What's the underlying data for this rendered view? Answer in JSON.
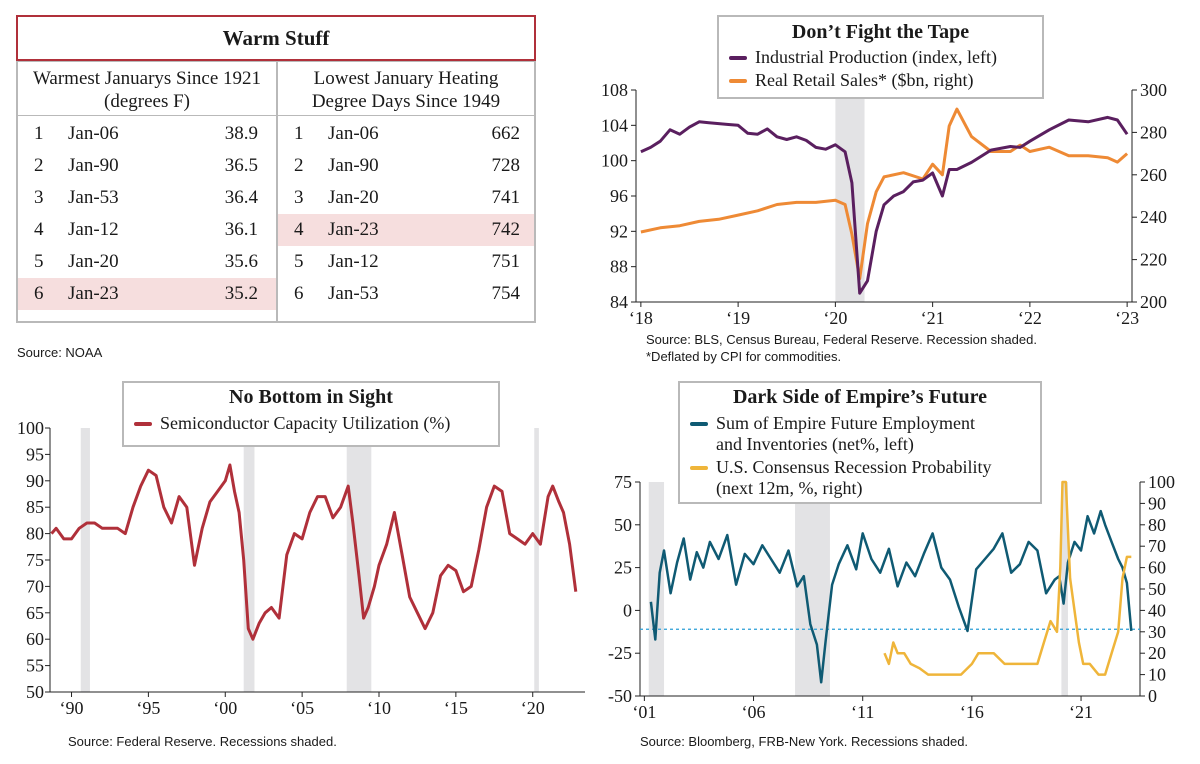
{
  "warm_stuff": {
    "title": "Warm Stuff",
    "left_header": "Warmest Januarys Since 1921 (degrees F)",
    "left_header_l1": "Warmest Januarys Since 1921",
    "left_header_l2": "(degrees F)",
    "right_header_l1": "Lowest January Heating",
    "right_header_l2": "Degree Days Since 1949",
    "left_rows": [
      {
        "rank": "1",
        "month": "Jan-06",
        "value": "38.9",
        "highlight": false
      },
      {
        "rank": "2",
        "month": "Jan-90",
        "value": "36.5",
        "highlight": false
      },
      {
        "rank": "3",
        "month": "Jan-53",
        "value": "36.4",
        "highlight": false
      },
      {
        "rank": "4",
        "month": "Jan-12",
        "value": "36.1",
        "highlight": false
      },
      {
        "rank": "5",
        "month": "Jan-20",
        "value": "35.6",
        "highlight": false
      },
      {
        "rank": "6",
        "month": "Jan-23",
        "value": "35.2",
        "highlight": true
      }
    ],
    "right_rows": [
      {
        "rank": "1",
        "month": "Jan-06",
        "value": "662",
        "highlight": false
      },
      {
        "rank": "2",
        "month": "Jan-90",
        "value": "728",
        "highlight": false
      },
      {
        "rank": "3",
        "month": "Jan-20",
        "value": "741",
        "highlight": false
      },
      {
        "rank": "4",
        "month": "Jan-23",
        "value": "742",
        "highlight": true
      },
      {
        "rank": "5",
        "month": "Jan-12",
        "value": "751",
        "highlight": false
      },
      {
        "rank": "6",
        "month": "Jan-53",
        "value": "754",
        "highlight": false
      }
    ],
    "source": "Source: NOAA"
  },
  "colors": {
    "purple": "#5a1f5f",
    "orange": "#ee8a35",
    "crimson": "#b0303a",
    "teal": "#0f5a73",
    "gold": "#efb53a",
    "recession": "#e3e3e5",
    "dashed": "#2a9fd6"
  },
  "chart_data": [
    {
      "id": "tape",
      "type": "line",
      "title": "Don’t Fight the Tape",
      "legend": [
        "Industrial Production (index, left)",
        "Real Retail Sales* ($bn, right)"
      ],
      "x_ticks": [
        "‘18",
        "‘19",
        "‘20",
        "‘21",
        "‘22",
        "‘23"
      ],
      "x_tick_values": [
        2018,
        2019,
        2020,
        2021,
        2022,
        2023
      ],
      "xlim": [
        2017.95,
        2023.05
      ],
      "y_left_ticks": [
        "108",
        "104",
        "100",
        "96",
        "92",
        "88",
        "84"
      ],
      "ylim_left": [
        84,
        108
      ],
      "y_right_ticks": [
        "300",
        "280",
        "260",
        "240",
        "220",
        "200"
      ],
      "ylim_right": [
        200,
        300
      ],
      "recessions": [
        [
          2020.0,
          2020.3
        ]
      ],
      "series": [
        {
          "name": "Industrial Production (index, left)",
          "axis": "left",
          "x": [
            2018.0,
            2018.1,
            2018.2,
            2018.3,
            2018.4,
            2018.5,
            2018.6,
            2018.7,
            2018.8,
            2018.9,
            2019.0,
            2019.1,
            2019.2,
            2019.3,
            2019.4,
            2019.5,
            2019.6,
            2019.7,
            2019.8,
            2019.9,
            2020.0,
            2020.1,
            2020.17,
            2020.25,
            2020.33,
            2020.42,
            2020.5,
            2020.6,
            2020.7,
            2020.8,
            2020.9,
            2021.0,
            2021.1,
            2021.17,
            2021.25,
            2021.4,
            2021.6,
            2021.8,
            2021.9,
            2022.0,
            2022.2,
            2022.4,
            2022.6,
            2022.8,
            2022.9,
            2023.0
          ],
          "values": [
            101.0,
            101.5,
            102.2,
            103.5,
            103.0,
            103.8,
            104.4,
            104.3,
            104.2,
            104.1,
            104.0,
            103.1,
            103.0,
            103.6,
            102.7,
            102.4,
            102.7,
            102.3,
            101.5,
            101.3,
            101.8,
            101.0,
            97.5,
            85.0,
            86.4,
            92.0,
            95.0,
            96.0,
            96.5,
            97.6,
            97.8,
            98.6,
            96.0,
            99.0,
            99.0,
            99.8,
            101.2,
            101.6,
            101.5,
            102.2,
            103.5,
            104.6,
            104.4,
            104.9,
            104.6,
            103.0
          ]
        },
        {
          "name": "Real Retail Sales* ($bn, right)",
          "axis": "right",
          "x": [
            2018.0,
            2018.2,
            2018.4,
            2018.6,
            2018.8,
            2019.0,
            2019.2,
            2019.4,
            2019.6,
            2019.8,
            2020.0,
            2020.1,
            2020.17,
            2020.25,
            2020.33,
            2020.42,
            2020.5,
            2020.7,
            2020.9,
            2021.0,
            2021.1,
            2021.17,
            2021.25,
            2021.4,
            2021.6,
            2021.8,
            2021.9,
            2022.0,
            2022.2,
            2022.4,
            2022.6,
            2022.8,
            2022.9,
            2023.0
          ],
          "values": [
            233,
            235,
            236,
            238,
            239,
            241,
            243,
            246,
            247,
            247,
            248,
            246,
            232,
            211,
            237,
            252,
            259,
            261,
            258,
            265,
            260,
            283,
            291,
            278,
            271,
            271,
            274,
            271,
            273,
            269,
            269,
            268,
            266,
            270
          ]
        }
      ]
    },
    {
      "id": "semis",
      "type": "line",
      "title": "No Bottom in Sight",
      "legend": [
        "Semiconductor Capacity Utilization (%)"
      ],
      "x_ticks": [
        "‘90",
        "‘95",
        "‘00",
        "‘05",
        "‘10",
        "‘15",
        "‘20"
      ],
      "x_tick_values": [
        1990,
        1995,
        2000,
        2005,
        2010,
        2015,
        2020
      ],
      "xlim": [
        1988.6,
        2023.4
      ],
      "y_left_ticks": [
        "100",
        "95",
        "90",
        "85",
        "80",
        "75",
        "70",
        "65",
        "60",
        "55",
        "50"
      ],
      "ylim_left": [
        50,
        100
      ],
      "recessions": [
        [
          1990.6,
          1991.2
        ],
        [
          2001.2,
          2001.9
        ],
        [
          2007.9,
          2009.5
        ],
        [
          2020.1,
          2020.4
        ]
      ],
      "series": [
        {
          "name": "Semiconductor Capacity Utilization (%)",
          "axis": "left",
          "x": [
            1988.7,
            1989.0,
            1989.5,
            1990.0,
            1990.5,
            1991.0,
            1991.5,
            1992.0,
            1992.5,
            1993.0,
            1993.5,
            1994.0,
            1994.5,
            1995.0,
            1995.5,
            1996.0,
            1996.5,
            1997.0,
            1997.5,
            1998.0,
            1998.5,
            1999.0,
            1999.5,
            2000.0,
            2000.3,
            2000.6,
            2000.9,
            2001.2,
            2001.5,
            2001.8,
            2002.2,
            2002.6,
            2003.0,
            2003.5,
            2004.0,
            2004.5,
            2005.0,
            2005.5,
            2006.0,
            2006.5,
            2007.0,
            2007.5,
            2008.0,
            2008.3,
            2008.7,
            2009.0,
            2009.3,
            2009.7,
            2010.0,
            2010.5,
            2011.0,
            2011.5,
            2012.0,
            2012.5,
            2013.0,
            2013.5,
            2014.0,
            2014.5,
            2015.0,
            2015.5,
            2016.0,
            2016.5,
            2017.0,
            2017.5,
            2018.0,
            2018.5,
            2019.0,
            2019.5,
            2020.0,
            2020.5,
            2021.0,
            2021.3,
            2021.7,
            2022.0,
            2022.4,
            2022.8
          ],
          "values": [
            80,
            81,
            79,
            79,
            81,
            82,
            82,
            81,
            81,
            81,
            80,
            85,
            89,
            92,
            91,
            85,
            82,
            87,
            85,
            74,
            81,
            86,
            88,
            90,
            93,
            88,
            84,
            75,
            62,
            60,
            63,
            65,
            66,
            64,
            76,
            80,
            79,
            84,
            87,
            87,
            83,
            85,
            89,
            82,
            72,
            64,
            66,
            70,
            74,
            78,
            84,
            76,
            68,
            65,
            62,
            65,
            72,
            74,
            73,
            69,
            70,
            77,
            85,
            89,
            88,
            80,
            79,
            78,
            80,
            78,
            87,
            89,
            86,
            84,
            78,
            69
          ]
        }
      ]
    },
    {
      "id": "empire",
      "type": "line",
      "title": "Dark Side of Empire’s Future",
      "legend": [
        "Sum of Empire Future Employment and Inventories (net%, left)",
        "U.S. Consensus Recession Probability (next 12m, %, right)"
      ],
      "x_ticks": [
        "‘01",
        "‘06",
        "‘11",
        "‘16",
        "‘21"
      ],
      "x_tick_values": [
        2001,
        2006,
        2011,
        2016,
        2021
      ],
      "xlim": [
        2000.8,
        2023.7
      ],
      "y_left_ticks": [
        "75",
        "50",
        "25",
        "0",
        "-25",
        "-50"
      ],
      "ylim_left": [
        -50,
        75
      ],
      "y_right_ticks": [
        "100",
        "90",
        "80",
        "70",
        "60",
        "50",
        "40",
        "30",
        "20",
        "10",
        "0"
      ],
      "ylim_right": [
        0,
        100
      ],
      "reference_line_left": -11,
      "recessions": [
        [
          2001.2,
          2001.9
        ],
        [
          2007.9,
          2009.5
        ],
        [
          2020.1,
          2020.4
        ]
      ],
      "series": [
        {
          "name": "Sum of Empire Future Employment and Inventories (net%, left)",
          "axis": "left",
          "x": [
            2001.3,
            2001.5,
            2001.7,
            2001.9,
            2002.2,
            2002.5,
            2002.8,
            2003.1,
            2003.4,
            2003.7,
            2004.0,
            2004.4,
            2004.8,
            2005.2,
            2005.6,
            2006.0,
            2006.4,
            2006.8,
            2007.2,
            2007.6,
            2008.0,
            2008.3,
            2008.6,
            2008.9,
            2009.1,
            2009.3,
            2009.6,
            2009.9,
            2010.3,
            2010.7,
            2011.0,
            2011.4,
            2011.8,
            2012.2,
            2012.6,
            2013.0,
            2013.4,
            2013.8,
            2014.2,
            2014.6,
            2015.0,
            2015.4,
            2015.8,
            2016.2,
            2016.6,
            2017.0,
            2017.4,
            2017.8,
            2018.2,
            2018.6,
            2019.0,
            2019.4,
            2019.8,
            2020.0,
            2020.2,
            2020.4,
            2020.7,
            2021.0,
            2021.3,
            2021.6,
            2021.9,
            2022.1,
            2022.4,
            2022.7,
            2022.9,
            2023.1,
            2023.3
          ],
          "values": [
            5,
            -17,
            22,
            35,
            10,
            28,
            42,
            18,
            34,
            25,
            40,
            30,
            44,
            15,
            33,
            27,
            38,
            30,
            22,
            35,
            14,
            20,
            -8,
            -20,
            -42,
            -18,
            15,
            27,
            38,
            24,
            45,
            30,
            22,
            36,
            14,
            28,
            20,
            33,
            45,
            25,
            18,
            2,
            -12,
            24,
            30,
            36,
            45,
            22,
            27,
            40,
            35,
            10,
            18,
            20,
            4,
            28,
            40,
            35,
            55,
            45,
            58,
            50,
            40,
            30,
            25,
            16,
            -12
          ]
        },
        {
          "name": "U.S. Consensus Recession Probability (next 12m, %, right)",
          "axis": "right",
          "x": [
            2012.0,
            2012.2,
            2012.4,
            2012.6,
            2012.9,
            2013.2,
            2013.6,
            2014.0,
            2014.5,
            2015.0,
            2015.5,
            2016.0,
            2016.3,
            2016.6,
            2017.0,
            2017.5,
            2018.0,
            2018.5,
            2019.0,
            2019.3,
            2019.6,
            2019.9,
            2020.05,
            2020.15,
            2020.3,
            2020.5,
            2020.7,
            2020.9,
            2021.1,
            2021.4,
            2021.8,
            2022.1,
            2022.4,
            2022.7,
            2022.9,
            2023.1,
            2023.3
          ],
          "values": [
            20,
            15,
            25,
            20,
            20,
            15,
            13,
            10,
            10,
            10,
            10,
            15,
            20,
            20,
            20,
            15,
            15,
            15,
            15,
            25,
            35,
            30,
            60,
            100,
            100,
            55,
            40,
            25,
            15,
            15,
            10,
            10,
            20,
            30,
            55,
            65,
            65
          ]
        }
      ]
    }
  ],
  "tape_source_l1": "Source: BLS, Census Bureau, Federal Reserve. Recession shaded.",
  "tape_source_l2": "*Deflated by CPI for commodities.",
  "semis_source": "Source: Federal Reserve. Recessions shaded.",
  "empire_source": "Source: Bloomberg, FRB-New York. Recessions shaded.",
  "empire_legend_l1a": "Sum of Empire Future Employment",
  "empire_legend_l1b": "and Inventories (net%, left)",
  "empire_legend_l2a": "U.S. Consensus Recession Probability",
  "empire_legend_l2b": "(next 12m, %, right)"
}
